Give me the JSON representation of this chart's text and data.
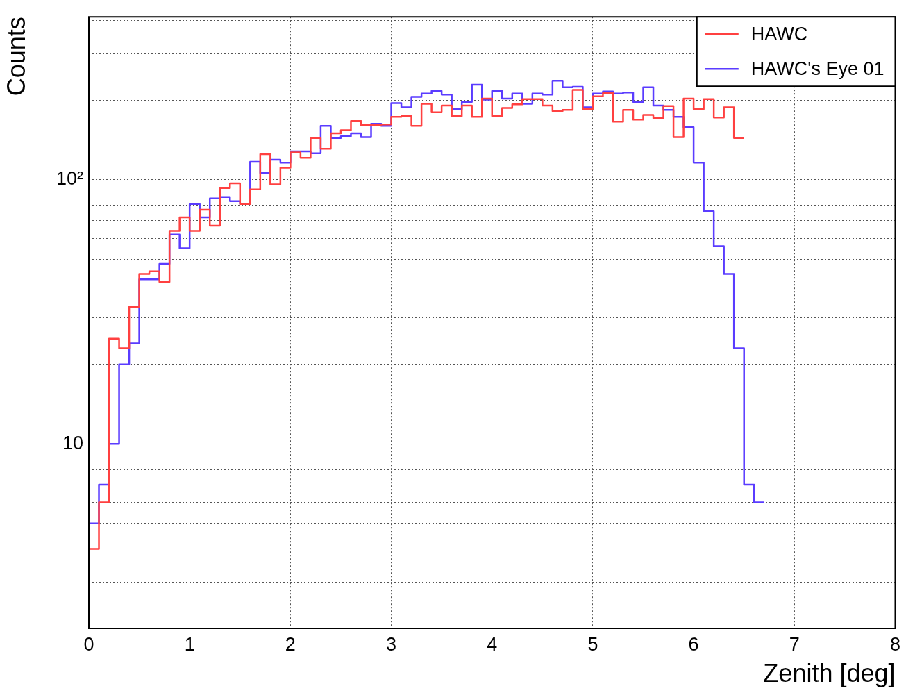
{
  "chart_data": {
    "type": "histogram",
    "xlabel": "Zenith [deg]",
    "ylabel": "Counts",
    "bins": [
      0,
      0.1,
      0.2,
      0.3,
      0.4,
      0.5,
      0.6,
      0.7,
      0.8,
      0.9,
      1,
      1.1,
      1.2,
      1.3,
      1.4,
      1.5,
      1.6,
      1.7,
      1.8,
      1.9,
      2,
      2.1,
      2.2,
      2.3,
      2.4,
      2.5,
      2.6,
      2.7,
      2.8,
      2.9,
      3,
      3.1,
      3.2,
      3.3,
      3.4,
      3.5,
      3.6,
      3.7,
      3.8,
      3.9,
      4,
      4.1,
      4.2,
      4.3,
      4.4,
      4.5,
      4.6,
      4.7,
      4.8,
      4.9,
      5,
      5.1,
      5.2,
      5.3,
      5.4,
      5.5,
      5.6,
      5.7,
      5.8,
      5.9,
      6,
      6.1,
      6.2,
      6.3,
      6.4,
      6.5,
      6.6,
      6.7
    ],
    "series": [
      {
        "name": "HAWC",
        "color": "#ff4040",
        "bins": [
          0,
          0.1,
          0.2,
          0.3,
          0.4,
          0.5,
          0.6,
          0.7,
          0.8,
          0.9,
          1,
          1.1,
          1.2,
          1.3,
          1.4,
          1.5,
          1.6,
          1.7,
          1.8,
          1.9,
          2,
          2.1,
          2.2,
          2.3,
          2.4,
          2.5,
          2.6,
          2.7,
          2.8,
          2.9,
          3,
          3.1,
          3.2,
          3.3,
          3.4,
          3.5,
          3.6,
          3.7,
          3.8,
          3.9,
          4,
          4.1,
          4.2,
          4.3,
          4.4,
          4.5,
          4.6,
          4.7,
          4.8,
          4.9,
          5,
          5.1,
          5.2,
          5.3,
          5.4,
          5.5,
          5.6,
          5.7,
          5.8,
          5.9,
          6,
          6.1,
          6.2,
          6.3,
          6.4,
          6.5
        ],
        "values": [
          4,
          6,
          25,
          23,
          33,
          44,
          45,
          41,
          64,
          72,
          64,
          77,
          67,
          93,
          97,
          81,
          92,
          125,
          96,
          111,
          127,
          121,
          144,
          131,
          150,
          154,
          167,
          161,
          161,
          162,
          173,
          174,
          160,
          194,
          180,
          191,
          174,
          191,
          173,
          203,
          174,
          187,
          193,
          202,
          202,
          191,
          182,
          184,
          219,
          185,
          207,
          213,
          166,
          184,
          169,
          176,
          171,
          190,
          145,
          203,
          185,
          202,
          172,
          188,
          144
        ]
      },
      {
        "name": "HAWC's Eye 01",
        "color": "#5a3cff",
        "values": [
          5,
          7,
          10,
          20,
          24,
          42,
          42,
          48,
          62,
          55,
          81,
          72,
          85,
          86,
          83,
          81,
          117,
          106,
          119,
          116,
          128,
          128,
          126,
          160,
          144,
          146,
          150,
          145,
          163,
          160,
          195,
          188,
          206,
          212,
          217,
          210,
          185,
          197,
          229,
          201,
          217,
          203,
          212,
          194,
          212,
          210,
          237,
          224,
          225,
          188,
          212,
          216,
          212,
          214,
          197,
          224,
          191,
          184,
          173,
          158,
          116,
          76,
          56,
          44,
          23,
          7,
          6
        ]
      }
    ],
    "xlim": [
      0,
      8
    ],
    "xticks": [
      0,
      1,
      2,
      3,
      4,
      5,
      6,
      7,
      8
    ],
    "ylim": [
      2,
      414
    ],
    "yticks": [
      {
        "value": 2,
        "label": null
      },
      {
        "value": 3,
        "label": null
      },
      {
        "value": 4,
        "label": null
      },
      {
        "value": 5,
        "label": null
      },
      {
        "value": 6,
        "label": null
      },
      {
        "value": 7,
        "label": null
      },
      {
        "value": 8,
        "label": null
      },
      {
        "value": 9,
        "label": null
      },
      {
        "value": 10,
        "label": "10"
      },
      {
        "value": 20,
        "label": null
      },
      {
        "value": 30,
        "label": null
      },
      {
        "value": 40,
        "label": null
      },
      {
        "value": 50,
        "label": null
      },
      {
        "value": 60,
        "label": null
      },
      {
        "value": 70,
        "label": null
      },
      {
        "value": 80,
        "label": null
      },
      {
        "value": 90,
        "label": null
      },
      {
        "value": 100,
        "label": "10²"
      },
      {
        "value": 200,
        "label": null
      },
      {
        "value": 300,
        "label": null
      },
      {
        "value": 400,
        "label": null
      }
    ],
    "log": true,
    "grid": true,
    "legend": "top right"
  }
}
